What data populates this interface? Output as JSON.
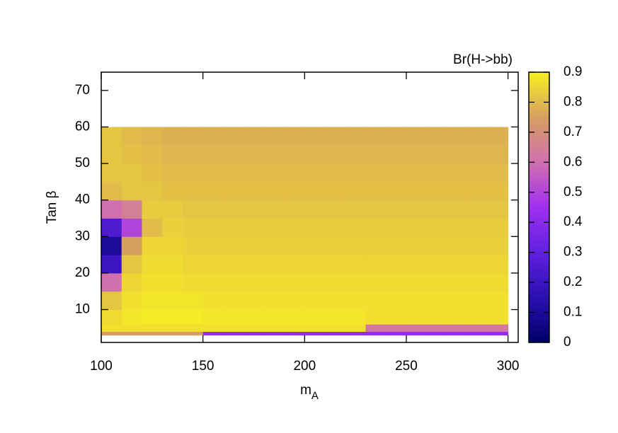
{
  "chart_data": {
    "type": "heatmap",
    "x_label": {
      "text": "m",
      "subscript": "A"
    },
    "y_label": "Tan β",
    "colorbar_label": "Br(H->bb)",
    "xlim": [
      100,
      305
    ],
    "xticks": [
      100,
      150,
      200,
      250,
      300
    ],
    "ylim": [
      1,
      75
    ],
    "yticks": [
      10,
      20,
      30,
      40,
      50,
      60,
      70
    ],
    "clim": [
      0,
      0.9
    ],
    "cticks": [
      0,
      0.1,
      0.2,
      0.3,
      0.4,
      0.5,
      0.6,
      0.7,
      0.8,
      0.9
    ],
    "colormap": [
      "#00006a",
      "#2a10b0",
      "#6020e0",
      "#a030f0",
      "#d070b0",
      "#d6a060",
      "#f8f020"
    ],
    "x_edges": [
      100,
      110,
      120,
      130,
      140,
      150,
      160,
      170,
      180,
      190,
      200,
      210,
      220,
      230,
      240,
      250,
      260,
      270,
      280,
      290,
      300
    ],
    "y_edges": [
      3,
      4,
      6,
      10,
      15,
      20,
      25,
      30,
      35,
      40,
      45,
      50,
      55,
      60
    ],
    "z": [
      [
        0.74,
        0.74,
        0.74,
        0.74,
        0.74,
        0.42,
        0.42,
        0.42,
        0.42,
        0.42,
        0.42,
        0.42,
        0.42,
        0.42,
        0.42,
        0.42,
        0.42,
        0.42,
        0.42,
        0.42
      ],
      [
        0.87,
        0.87,
        0.87,
        0.87,
        0.87,
        0.87,
        0.87,
        0.87,
        0.87,
        0.87,
        0.87,
        0.87,
        0.87,
        0.62,
        0.62,
        0.62,
        0.62,
        0.62,
        0.62,
        0.62
      ],
      [
        0.86,
        0.88,
        0.89,
        0.89,
        0.89,
        0.88,
        0.88,
        0.88,
        0.88,
        0.88,
        0.88,
        0.88,
        0.88,
        0.87,
        0.87,
        0.87,
        0.87,
        0.87,
        0.87,
        0.87
      ],
      [
        0.82,
        0.87,
        0.88,
        0.88,
        0.88,
        0.87,
        0.87,
        0.87,
        0.87,
        0.87,
        0.87,
        0.87,
        0.87,
        0.87,
        0.87,
        0.87,
        0.87,
        0.87,
        0.87,
        0.87
      ],
      [
        0.6,
        0.85,
        0.87,
        0.87,
        0.86,
        0.86,
        0.86,
        0.86,
        0.86,
        0.86,
        0.86,
        0.86,
        0.86,
        0.86,
        0.86,
        0.86,
        0.86,
        0.86,
        0.86,
        0.86
      ],
      [
        0.2,
        0.82,
        0.86,
        0.86,
        0.85,
        0.85,
        0.85,
        0.85,
        0.85,
        0.85,
        0.85,
        0.85,
        0.85,
        0.85,
        0.85,
        0.85,
        0.85,
        0.85,
        0.85,
        0.85
      ],
      [
        0.1,
        0.75,
        0.85,
        0.85,
        0.84,
        0.84,
        0.84,
        0.84,
        0.84,
        0.84,
        0.84,
        0.84,
        0.84,
        0.84,
        0.84,
        0.84,
        0.84,
        0.84,
        0.84,
        0.84
      ],
      [
        0.25,
        0.5,
        0.8,
        0.84,
        0.83,
        0.83,
        0.83,
        0.83,
        0.83,
        0.83,
        0.83,
        0.83,
        0.83,
        0.83,
        0.83,
        0.83,
        0.83,
        0.83,
        0.83,
        0.83
      ],
      [
        0.6,
        0.65,
        0.83,
        0.83,
        0.82,
        0.82,
        0.82,
        0.82,
        0.82,
        0.82,
        0.82,
        0.82,
        0.82,
        0.82,
        0.82,
        0.82,
        0.82,
        0.82,
        0.82,
        0.82
      ],
      [
        0.8,
        0.82,
        0.82,
        0.81,
        0.81,
        0.81,
        0.81,
        0.81,
        0.81,
        0.81,
        0.81,
        0.81,
        0.81,
        0.81,
        0.81,
        0.81,
        0.81,
        0.81,
        0.81,
        0.81
      ],
      [
        0.82,
        0.82,
        0.81,
        0.8,
        0.8,
        0.8,
        0.8,
        0.8,
        0.8,
        0.8,
        0.8,
        0.8,
        0.8,
        0.8,
        0.8,
        0.8,
        0.8,
        0.8,
        0.8,
        0.8
      ],
      [
        0.82,
        0.81,
        0.8,
        0.79,
        0.79,
        0.79,
        0.79,
        0.79,
        0.79,
        0.79,
        0.79,
        0.79,
        0.79,
        0.79,
        0.79,
        0.79,
        0.79,
        0.79,
        0.79,
        0.79
      ],
      [
        0.82,
        0.8,
        0.79,
        0.78,
        0.78,
        0.78,
        0.78,
        0.78,
        0.78,
        0.78,
        0.78,
        0.78,
        0.78,
        0.78,
        0.78,
        0.78,
        0.78,
        0.78,
        0.78,
        0.78
      ]
    ]
  }
}
